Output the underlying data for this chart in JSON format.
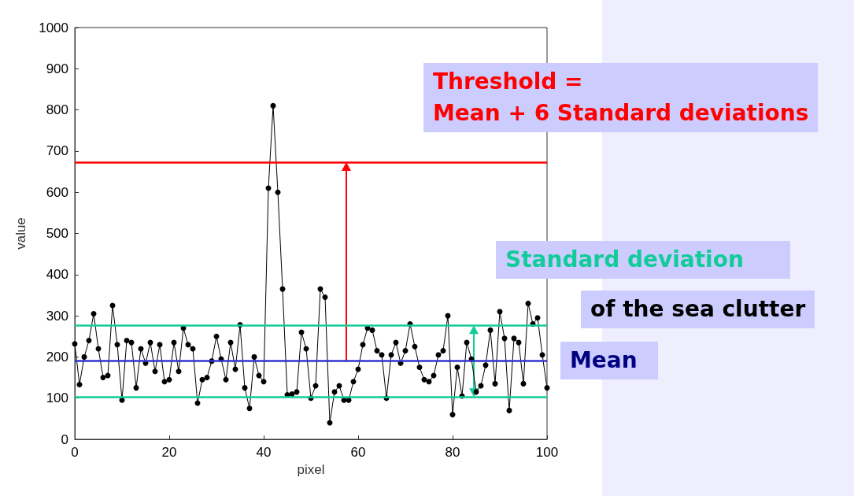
{
  "chart_data": {
    "type": "line",
    "xlabel": "pixel",
    "ylabel": "value",
    "x": [
      0,
      1,
      2,
      3,
      4,
      5,
      6,
      7,
      8,
      9,
      10,
      11,
      12,
      13,
      14,
      15,
      16,
      17,
      18,
      19,
      20,
      21,
      22,
      23,
      24,
      25,
      26,
      27,
      28,
      29,
      30,
      31,
      32,
      33,
      34,
      35,
      36,
      37,
      38,
      39,
      40,
      41,
      42,
      43,
      44,
      45,
      46,
      47,
      48,
      49,
      50,
      51,
      52,
      53,
      54,
      55,
      56,
      57,
      58,
      59,
      60,
      61,
      62,
      63,
      64,
      65,
      66,
      67,
      68,
      69,
      70,
      71,
      72,
      73,
      74,
      75,
      76,
      77,
      78,
      79,
      80,
      81,
      82,
      83,
      84,
      85,
      86,
      87,
      88,
      89,
      90,
      91,
      92,
      93,
      94,
      95,
      96,
      97,
      98,
      99,
      100
    ],
    "series": [
      {
        "color": "#000000",
        "values": [
          232,
          133,
          200,
          240,
          305,
          220,
          150,
          155,
          325,
          230,
          95,
          240,
          235,
          125,
          220,
          185,
          235,
          165,
          230,
          140,
          145,
          235,
          165,
          270,
          230,
          220,
          88,
          145,
          150,
          190,
          250,
          195,
          145,
          235,
          170,
          278,
          125,
          75,
          200,
          155,
          140,
          610,
          810,
          600,
          365,
          108,
          110,
          115,
          260,
          220,
          100,
          130,
          365,
          345,
          40,
          115,
          130,
          95,
          95,
          140,
          170,
          230,
          270,
          265,
          215,
          205,
          100,
          205,
          235,
          185,
          215,
          280,
          225,
          175,
          145,
          140,
          155,
          205,
          215,
          300,
          60,
          175,
          105,
          235,
          195,
          115,
          130,
          180,
          265,
          135,
          310,
          245,
          70,
          245,
          235,
          135,
          330,
          280,
          295,
          205,
          125
        ]
      }
    ],
    "xlim": [
      0,
      100
    ],
    "xticks": [
      0,
      20,
      40,
      60,
      80,
      100
    ],
    "ylim": [
      0,
      1000
    ],
    "yticks": [
      0,
      100,
      200,
      300,
      400,
      500,
      600,
      700,
      800,
      900,
      1000
    ],
    "marker": "circle",
    "line_style": "solid",
    "grid": false,
    "ref_lines": [
      {
        "axis": "y",
        "value": 673,
        "color": "#ff0000"
      },
      {
        "axis": "y",
        "value": 277,
        "color": "#11cc99"
      },
      {
        "axis": "y",
        "value": 190,
        "color": "#3333cc",
        "label": "Mean"
      },
      {
        "axis": "y",
        "value": 103,
        "color": "#11cc99"
      }
    ],
    "annotations": [
      "Threshold =",
      "Mean + 6 Standard deviations",
      "Standard deviation",
      "of the sea clutter"
    ]
  }
}
